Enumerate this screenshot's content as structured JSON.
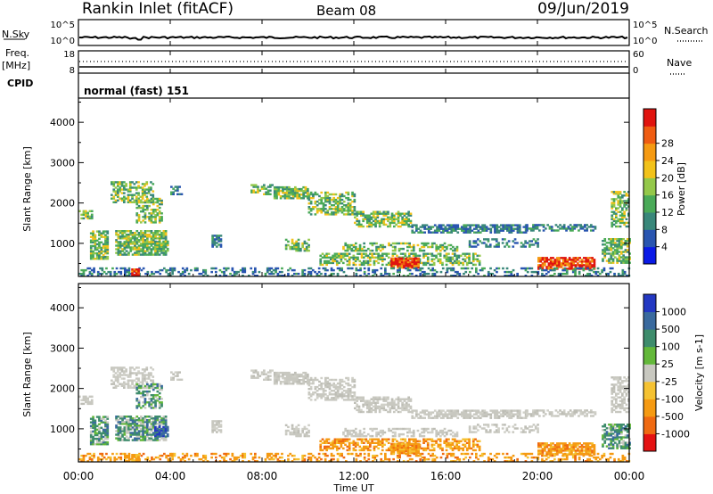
{
  "header": {
    "station": "Rankin Inlet (fitACF)",
    "beam": "Beam 08",
    "date": "09/Jun/2019"
  },
  "nsky_panel": {
    "left_label": "N.Sky",
    "left_top_tick": "10^5",
    "left_bottom_tick": "10^0",
    "right_top_tick": "10^5",
    "right_bottom_tick": "10^0",
    "right_label": "N.Search"
  },
  "freq_panel": {
    "left_label_line1": "Freq.",
    "left_label_line2": "[MHz]",
    "left_top_tick": "18",
    "left_bottom_tick": "8",
    "right_top_tick": "60",
    "right_bottom_tick": "0",
    "right_label": "Nave"
  },
  "cpid_panel": {
    "label": "CPID",
    "text": "normal (fast) 151"
  },
  "chart_data": [
    {
      "type": "heatmap",
      "name": "power",
      "ylabel": "Slant Range [km]",
      "ylim": [
        180,
        4600
      ],
      "yticks": [
        "1000",
        "2000",
        "3000",
        "4000"
      ],
      "ytick_values": [
        1000,
        2000,
        3000,
        4000
      ],
      "colorbar_label": "Power [dB]",
      "colorbar_ticks": [
        "4",
        "8",
        "12",
        "16",
        "20",
        "24",
        "28"
      ],
      "colorbar_colors": [
        "#0a1ae6",
        "#2955b0",
        "#39877a",
        "#4aaa58",
        "#94c84a",
        "#f2c21a",
        "#f59a12",
        "#ef5c12",
        "#e0140f"
      ],
      "colorbar_range": [
        0,
        30
      ]
    },
    {
      "type": "heatmap",
      "name": "velocity",
      "xlabel": "Time UT",
      "ylabel": "Slant Range [km]",
      "ylim": [
        180,
        4600
      ],
      "yticks": [
        "1000",
        "2000",
        "3000",
        "4000"
      ],
      "ytick_values": [
        1000,
        2000,
        3000,
        4000
      ],
      "xticks": [
        "00:00",
        "04:00",
        "08:00",
        "12:00",
        "16:00",
        "20:00",
        "00:00"
      ],
      "xtick_hours": [
        0,
        4,
        8,
        12,
        16,
        20,
        24
      ],
      "colorbar_label": "Velocity [m s-1]",
      "colorbar_ticks": [
        "1000",
        "500",
        "100",
        "25",
        "-25",
        "-100",
        "-500",
        "-1000"
      ],
      "colorbar_colors": [
        "#2338c2",
        "#3a6a9e",
        "#3e8c6c",
        "#63b83a",
        "#c8c8c0",
        "#f5c232",
        "#f59a12",
        "#ef6a12",
        "#e41212"
      ]
    }
  ]
}
